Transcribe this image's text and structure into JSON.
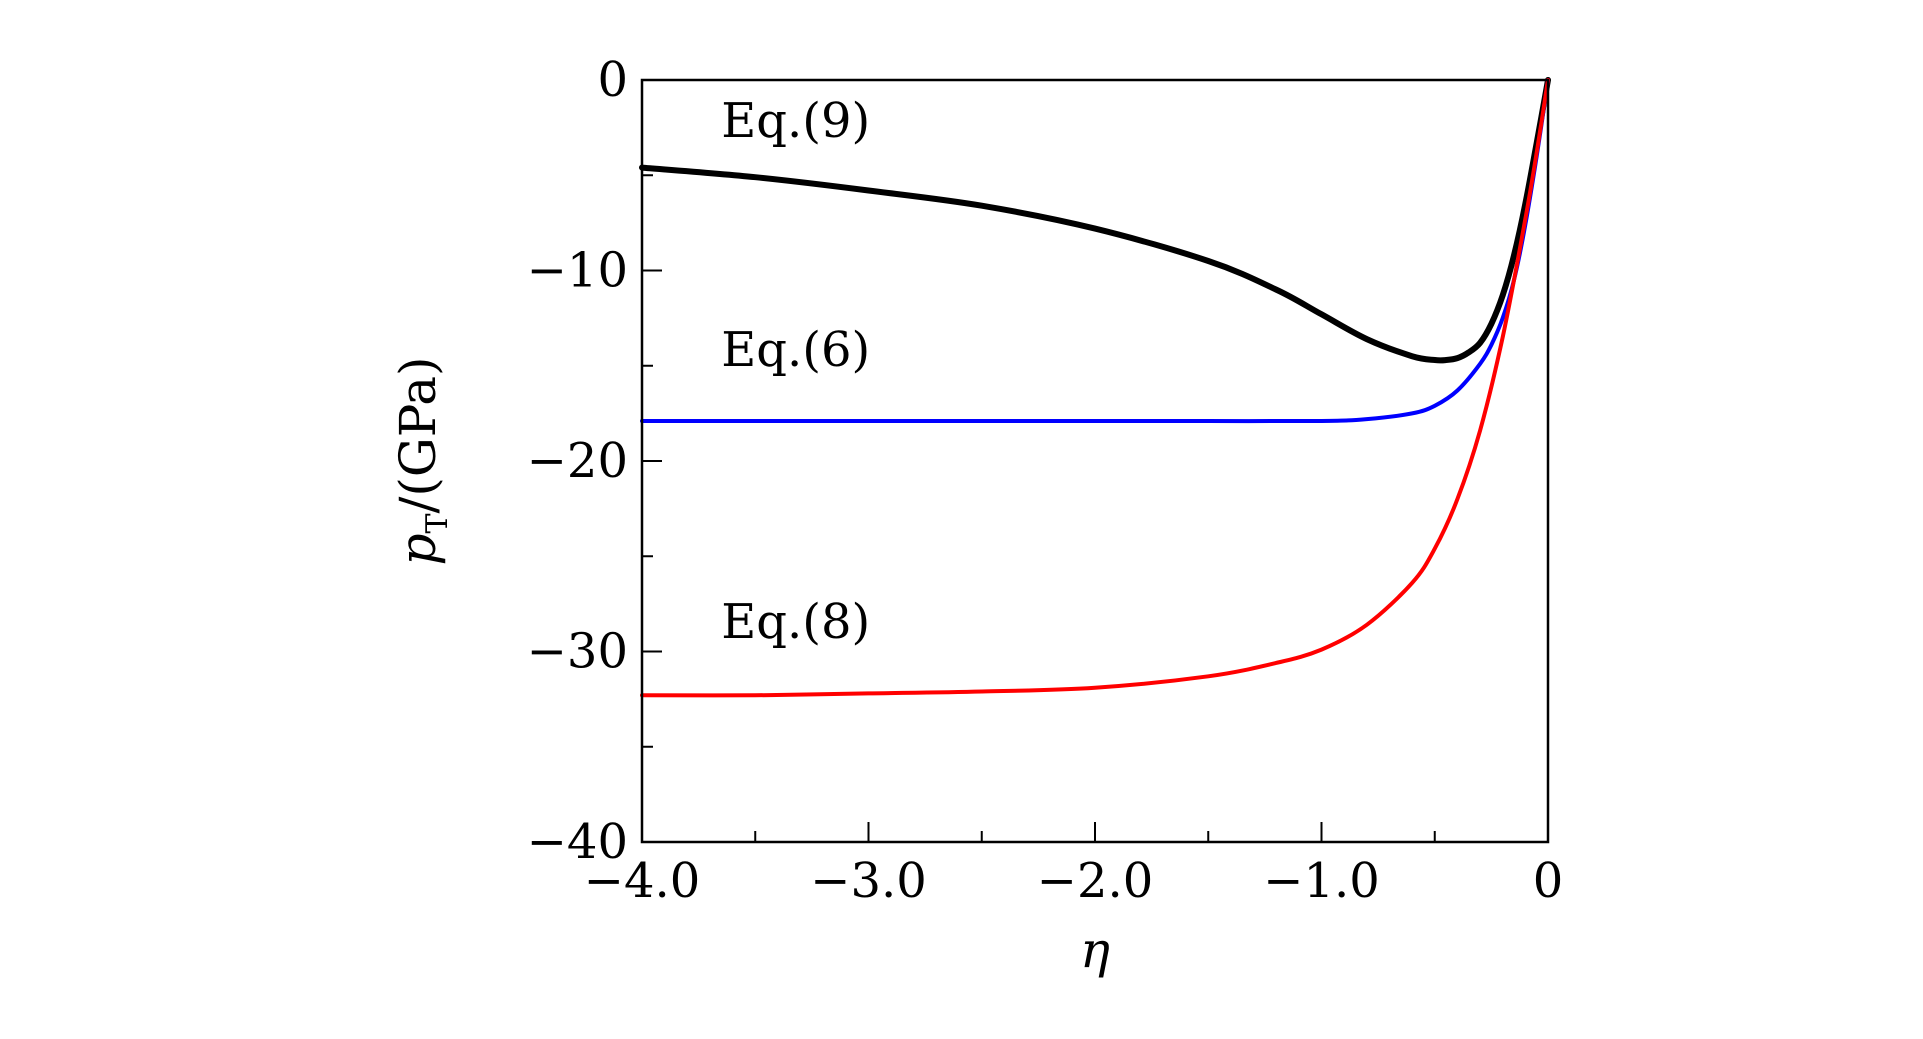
{
  "chart_data": {
    "type": "line",
    "title": "",
    "xlabel": "η",
    "ylabel": {
      "symbol": "p",
      "subscript": "T",
      "unit": "/(GPa)"
    },
    "xlim": [
      -4.0,
      0
    ],
    "ylim": [
      -40,
      0
    ],
    "xticks": [
      {
        "value": -4.0,
        "label": "−4.0"
      },
      {
        "value": -3.0,
        "label": "−3.0"
      },
      {
        "value": -2.0,
        "label": "−2.0"
      },
      {
        "value": -1.0,
        "label": "−1.0"
      },
      {
        "value": 0,
        "label": "0"
      }
    ],
    "yticks": [
      {
        "value": 0,
        "label": "0"
      },
      {
        "value": -10,
        "label": "−10"
      },
      {
        "value": -20,
        "label": "−20"
      },
      {
        "value": -30,
        "label": "−30"
      },
      {
        "value": -40,
        "label": "−40"
      }
    ],
    "grid": false,
    "series": [
      {
        "name": "Eq.(9)",
        "color": "#000000",
        "x": [
          -4.0,
          -3.5,
          -3.0,
          -2.5,
          -2.0,
          -1.5,
          -1.2,
          -1.0,
          -0.8,
          -0.6,
          -0.5,
          -0.45,
          -0.4,
          -0.35,
          -0.3,
          -0.25,
          -0.2,
          -0.15,
          -0.1,
          -0.05,
          0
        ],
        "y": [
          -4.6,
          -5.1,
          -5.8,
          -6.6,
          -7.8,
          -9.5,
          -11.0,
          -12.3,
          -13.6,
          -14.5,
          -14.7,
          -14.7,
          -14.6,
          -14.3,
          -13.8,
          -12.8,
          -11.3,
          -9.2,
          -6.5,
          -3.3,
          0
        ]
      },
      {
        "name": "Eq.(6)",
        "color": "#0000ff",
        "x": [
          -4.0,
          -3.0,
          -2.0,
          -1.5,
          -1.0,
          -0.8,
          -0.6,
          -0.5,
          -0.4,
          -0.3,
          -0.25,
          -0.2,
          -0.15,
          -0.1,
          -0.05,
          0
        ],
        "y": [
          -17.9,
          -17.9,
          -17.9,
          -17.9,
          -17.9,
          -17.8,
          -17.5,
          -17.1,
          -16.3,
          -14.9,
          -13.9,
          -12.5,
          -10.5,
          -7.6,
          -4.0,
          0
        ]
      },
      {
        "name": "Eq.(8)",
        "color": "#ff0000",
        "x": [
          -4.0,
          -3.5,
          -3.0,
          -2.5,
          -2.0,
          -1.5,
          -1.2,
          -1.0,
          -0.8,
          -0.6,
          -0.5,
          -0.4,
          -0.3,
          -0.2,
          -0.1,
          -0.05,
          0
        ],
        "y": [
          -32.3,
          -32.3,
          -32.2,
          -32.1,
          -31.9,
          -31.3,
          -30.6,
          -29.9,
          -28.6,
          -26.4,
          -24.6,
          -22.0,
          -18.4,
          -13.5,
          -7.3,
          -3.8,
          0
        ]
      }
    ],
    "annotations": [
      {
        "series": "Eq.(9)",
        "text": "Eq.(9)",
        "x": -3.65,
        "y": -3.0
      },
      {
        "series": "Eq.(6)",
        "text": "Eq.(6)",
        "x": -3.65,
        "y": -15.0
      },
      {
        "series": "Eq.(8)",
        "text": "Eq.(8)",
        "x": -3.65,
        "y": -29.3
      }
    ]
  }
}
